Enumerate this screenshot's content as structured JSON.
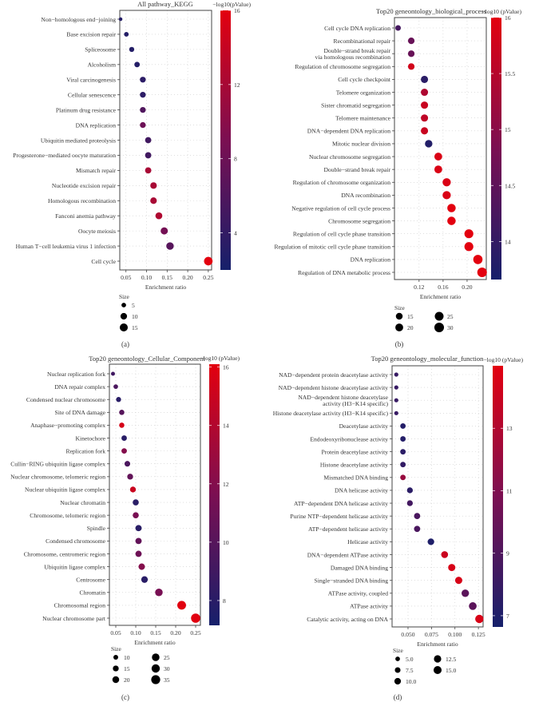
{
  "chart_data": [
    {
      "type": "scatter",
      "panel_label": "(a)",
      "title": "All pathway_KEGG",
      "xlabel": "Enrichment ratio",
      "colorbar_title": "−log10(pValue)",
      "colorbar_range": [
        2,
        16
      ],
      "colorbar_ticks": [
        4,
        8,
        12,
        16
      ],
      "xlim": [
        0.035,
        0.258
      ],
      "xticks": [
        0.05,
        0.1,
        0.15,
        0.2,
        0.25
      ],
      "xtick_labels": [
        "0.05",
        "0.10",
        "0.15",
        "0.20",
        "0.25"
      ],
      "size_title": "Size",
      "size_legend": [
        5,
        10,
        15
      ],
      "size_legend_labels": [
        "5",
        "10",
        "15"
      ],
      "colors": {
        "low": "#16206b",
        "mid": "#7b0f52",
        "high": "#e3000f"
      },
      "grid": true,
      "categories": [
        "Non−homologous end−joining",
        "Base excision repair",
        "Spliceosome",
        "Alcoholism",
        "Viral carcinogenesis",
        "Cellular senescence",
        "Platinum drug resistance",
        "DNA replication",
        "Ubiquitin mediated proteolysis",
        "Progesterone−mediated oocyte maturation",
        "Mismatch repair",
        "Nucleotide excision repair",
        "Homologous recombination",
        "Fanconi anemia pathway",
        "Oocyte meiosis",
        "Human T−cell leukemia virus 1 infection",
        "Cell cycle"
      ],
      "x": [
        0.037,
        0.051,
        0.064,
        0.077,
        0.091,
        0.091,
        0.091,
        0.091,
        0.104,
        0.104,
        0.104,
        0.117,
        0.117,
        0.13,
        0.143,
        0.157,
        0.25
      ],
      "size": [
        3,
        5,
        6,
        7,
        8,
        8,
        8,
        8,
        9,
        9,
        9,
        10,
        10,
        11,
        12,
        13,
        17
      ],
      "neglog10p": [
        3,
        3,
        3,
        3,
        3.5,
        3.5,
        6,
        8,
        5,
        5,
        12,
        12,
        12,
        12.5,
        8.5,
        6.5,
        16
      ]
    },
    {
      "type": "scatter",
      "panel_label": "(b)",
      "title": "Top20 geneontology_biological_process",
      "xlabel": "Enrichment ratio",
      "colorbar_title": "−log10 (pValue)",
      "colorbar_range": [
        13.66,
        16.0
      ],
      "colorbar_ticks": [
        14.0,
        14.5,
        15.0,
        15.5,
        16.0
      ],
      "xlim": [
        0.079,
        0.232
      ],
      "xticks": [
        0.12,
        0.16,
        0.2
      ],
      "xtick_labels": [
        "0.12",
        "0.16",
        "0.20"
      ],
      "size_title": "Size",
      "size_legend": [
        15,
        20,
        25,
        30
      ],
      "size_legend_labels": [
        "15",
        "20",
        "25",
        "30"
      ],
      "colors": {
        "low": "#16206b",
        "mid": "#7b0f52",
        "high": "#e3000f"
      },
      "grid": true,
      "categories": [
        "Cell cycle DNA replication",
        "Recombinational repair",
        "Double−strand break repair\nvia homologous recombination",
        "Regulation of chromosome segregation",
        "Cell cycle checkpoint",
        "Telomere organization",
        "Sister chromatid segregation",
        "Telomere maintenance",
        "DNA−dependent DNA replication",
        "Mitotic nuclear division",
        "Nuclear chromosome segregation",
        "Double−strand break repair",
        "Regulation of chromosome organization",
        "DNA recombination",
        "Negative regulation of cell cycle process",
        "Chromosome segregation",
        "Regulation of cell cycle phase transition",
        "Regulation of mitotic cell cycle phase transition",
        "DNA replication",
        "Regulation of DNA metabolic process"
      ],
      "x": [
        0.085,
        0.107,
        0.107,
        0.107,
        0.129,
        0.129,
        0.129,
        0.129,
        0.129,
        0.136,
        0.152,
        0.152,
        0.166,
        0.166,
        0.174,
        0.174,
        0.203,
        0.203,
        0.218,
        0.225
      ],
      "size": [
        10,
        14,
        14,
        14,
        17,
        17,
        17,
        17,
        17,
        18,
        20,
        20,
        22,
        22,
        23,
        23,
        26,
        26,
        28,
        30
      ],
      "neglog10p": [
        14.2,
        14.6,
        14.6,
        15.8,
        13.9,
        15.4,
        15.7,
        15.6,
        15.7,
        13.8,
        15.9,
        15.9,
        15.9,
        15.9,
        16,
        16,
        16,
        16,
        16,
        16
      ]
    },
    {
      "type": "scatter",
      "panel_label": "(c)",
      "title": "Top20 geneontology_Cellular_Component",
      "xlabel": "Enrichment ratio",
      "colorbar_title": "−log10 (pValue)",
      "colorbar_range": [
        7.15,
        16.1
      ],
      "colorbar_ticks": [
        8,
        10,
        12,
        14,
        16
      ],
      "xlim": [
        0.034,
        0.262
      ],
      "xticks": [
        0.05,
        0.1,
        0.15,
        0.2,
        0.25
      ],
      "xtick_labels": [
        "0.05",
        "0.10",
        "0.15",
        "0.20",
        "0.25"
      ],
      "size_title": "Size",
      "size_legend": [
        10,
        15,
        20,
        25,
        30,
        35
      ],
      "size_legend_labels": [
        "10",
        "15",
        "20",
        "25",
        "30",
        "35"
      ],
      "colors": {
        "low": "#16206b",
        "mid": "#7b0f52",
        "high": "#e3000f"
      },
      "grid": true,
      "categories": [
        "Nuclear replication fork",
        "DNA repair complex",
        "Condensed nuclear chromosome",
        "Site of DNA damage",
        "Anaphase−promoting complex",
        "Kinetochore",
        "Replication fork",
        "Cullin−RING ubiquitin ligase complex",
        "Nuclear chromosome, telomeric region",
        "Nuclear ubiquitin ligase complex",
        "Nuclear chromatin",
        "Chromosome, telomeric region",
        "Spindle",
        "Condensed chromosome",
        "Chromosome, centromeric region",
        "Ubiquitin ligase complex",
        "Centrosome",
        "Chromatin",
        "Chromosomal region",
        "Nuclear chromosome part"
      ],
      "x": [
        0.043,
        0.05,
        0.057,
        0.065,
        0.065,
        0.071,
        0.071,
        0.079,
        0.086,
        0.093,
        0.1,
        0.1,
        0.107,
        0.107,
        0.107,
        0.115,
        0.122,
        0.158,
        0.215,
        0.25
      ],
      "size": [
        7,
        9,
        11,
        12,
        12,
        13,
        13,
        14,
        15,
        15,
        16,
        16,
        17,
        17,
        17,
        18,
        19,
        25,
        33,
        37
      ],
      "neglog10p": [
        9,
        9.5,
        8,
        10,
        15.5,
        8,
        12,
        9.5,
        10.5,
        15,
        8,
        11.5,
        8,
        10.5,
        11,
        12,
        8,
        11.5,
        16,
        16
      ]
    },
    {
      "type": "scatter",
      "panel_label": "(d)",
      "title": "Top20 geneontology_molecular_function",
      "xlabel": "Enrichment ratio",
      "colorbar_title": "−log10 (pValue)",
      "colorbar_range": [
        6.64,
        15.0
      ],
      "colorbar_ticks": [
        7,
        9,
        11,
        13
      ],
      "xlim": [
        0.033,
        0.13
      ],
      "xticks": [
        0.05,
        0.075,
        0.1,
        0.125
      ],
      "xtick_labels": [
        "0.050",
        "0.075",
        "0.100",
        "0.125"
      ],
      "size_title": "Size",
      "size_legend": [
        5.0,
        7.5,
        10.0,
        12.5,
        15.0
      ],
      "size_legend_labels": [
        "5.0",
        "7.5",
        "10.0",
        "12.5",
        "15.0"
      ],
      "colors": {
        "low": "#16206b",
        "mid": "#7b0f52",
        "high": "#e3000f"
      },
      "grid": true,
      "categories": [
        "NAD−dependent protein deacetylase activity",
        "NAD−dependent histone deacetylase activity",
        "NAD−dependent histone deacetylase\nactivity (H3−K14 specific)",
        "Histone deacetylase activity (H3−K14 specific)",
        "Deacetylase activity",
        "Endodeoxyribonuclease activity",
        "Protein deacetylase activity",
        "Histone deacetylase activity",
        "Mismatched DNA binding",
        "DNA helicase activity",
        "ATP−dependent DNA helicase activity",
        "Purine NTP−dependent helicase activity",
        "ATP−dependent helicase activity",
        "Helicase activity",
        "DNA−dependent ATPase activity",
        "Damaged DNA binding",
        "Single−stranded DNA binding",
        "ATPase activity, coupled",
        "ATPase activity",
        "Catalytic activity, acting on DNA"
      ],
      "x": [
        0.0375,
        0.0375,
        0.0375,
        0.0375,
        0.0446,
        0.0446,
        0.0446,
        0.0446,
        0.0446,
        0.052,
        0.052,
        0.0597,
        0.0597,
        0.0744,
        0.089,
        0.0966,
        0.104,
        0.111,
        0.119,
        0.126
      ],
      "size": [
        4,
        4,
        4,
        4,
        7,
        7,
        7,
        7,
        7,
        8,
        8,
        9,
        9,
        10,
        11,
        12,
        12,
        13,
        14,
        16
      ],
      "neglog10p": [
        8,
        8,
        8,
        8,
        7.2,
        7.2,
        7.5,
        7.8,
        12,
        7.5,
        8.5,
        8.8,
        8.8,
        7,
        14,
        14.5,
        14.5,
        9.5,
        9.5,
        14.5
      ]
    }
  ]
}
